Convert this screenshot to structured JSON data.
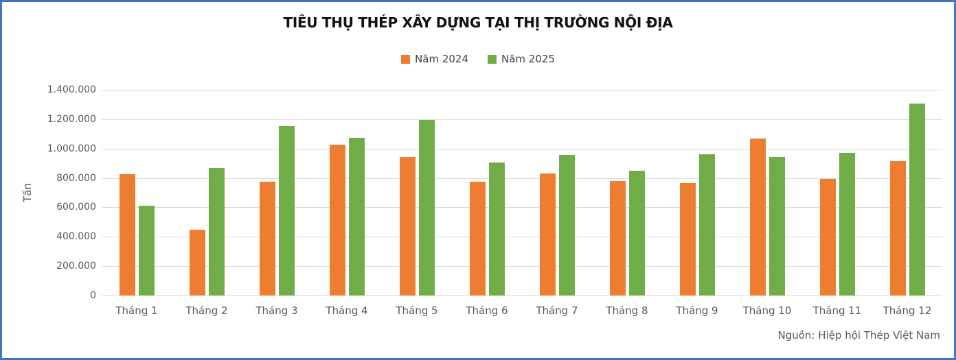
{
  "frame": {
    "border_color": "#4472C4",
    "background": "#FFFFFF"
  },
  "chart_data": {
    "type": "bar",
    "title": "TIÊU THỤ THÉP XÂY DỰNG TẠI THỊ TRƯỜNG NỘI ĐỊA",
    "xlabel": "",
    "ylabel": "Tấn",
    "ylim": [
      0,
      1400000
    ],
    "ytick_step": 200000,
    "yticks": [
      "1.400.000",
      "1.200.000",
      "1.000.000",
      "800.000",
      "600.000",
      "400.000",
      "200.000",
      "0"
    ],
    "grid": true,
    "legend_position": "top",
    "categories": [
      "Tháng 1",
      "Tháng 2",
      "Tháng 3",
      "Tháng 4",
      "Tháng 5",
      "Tháng 6",
      "Tháng 7",
      "Tháng 8",
      "Tháng 9",
      "Tháng 10",
      "Tháng 11",
      "Tháng 12"
    ],
    "series": [
      {
        "name": "Năm 2024",
        "color": "#ED7D31",
        "values": [
          828000,
          450000,
          775000,
          1025000,
          945000,
          775000,
          830000,
          780000,
          765000,
          1070000,
          795000,
          915000
        ]
      },
      {
        "name": "Năm 2025",
        "color": "#70AD47",
        "values": [
          613000,
          870000,
          1155000,
          1075000,
          1195000,
          905000,
          955000,
          850000,
          960000,
          945000,
          970000,
          1305000
        ]
      }
    ]
  },
  "source_note": "Nguồn: Hiệp hội Thép Việt Nam"
}
